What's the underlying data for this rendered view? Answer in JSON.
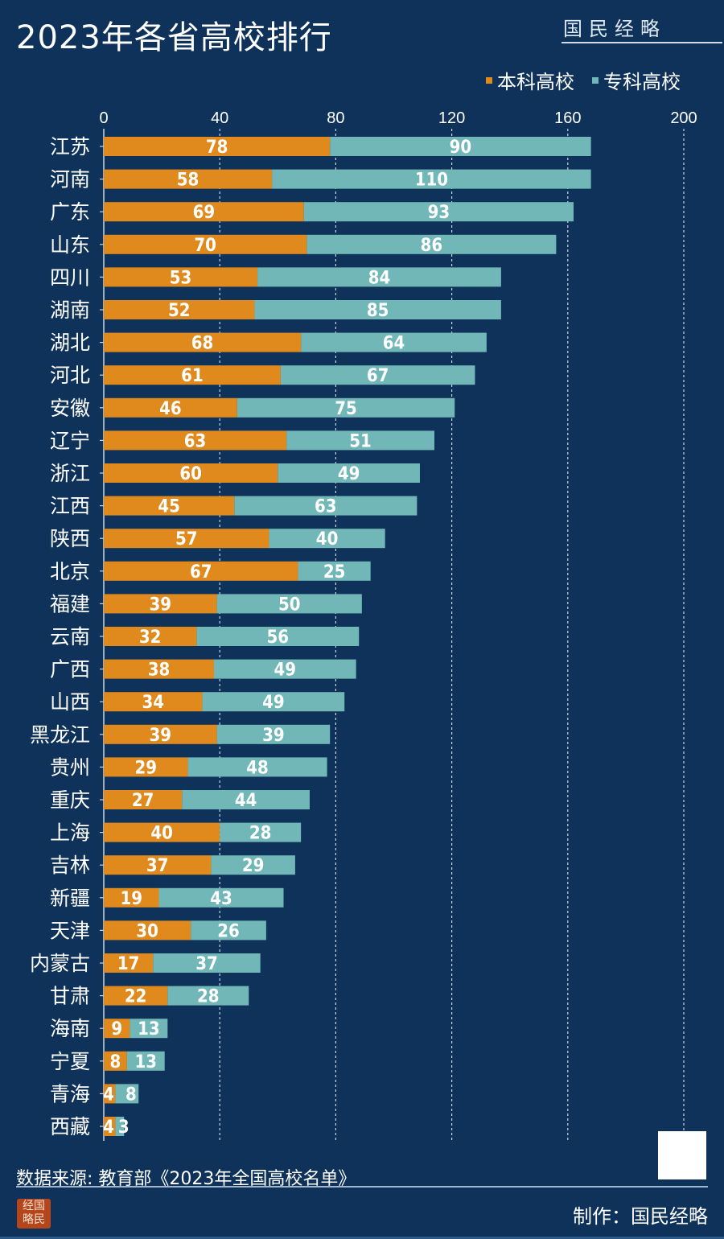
{
  "header": {
    "title": "2023年各省高校排行",
    "brand": "国民经略"
  },
  "colors": {
    "background": "#0e3259",
    "undergrad": "#e08a1e",
    "junior": "#72b7b7"
  },
  "chart_data": {
    "type": "bar",
    "orientation": "horizontal-stacked",
    "title": "2023年各省高校排行",
    "xlim": [
      0,
      200
    ],
    "xticks": [
      0,
      40,
      80,
      120,
      160,
      200
    ],
    "grid": true,
    "legend": "top-right",
    "categories": [
      "江苏",
      "河南",
      "广东",
      "山东",
      "四川",
      "湖南",
      "湖北",
      "河北",
      "安徽",
      "辽宁",
      "浙江",
      "江西",
      "陕西",
      "北京",
      "福建",
      "云南",
      "广西",
      "山西",
      "黑龙江",
      "贵州",
      "重庆",
      "上海",
      "吉林",
      "新疆",
      "天津",
      "内蒙古",
      "甘肃",
      "海南",
      "宁夏",
      "青海",
      "西藏"
    ],
    "series": [
      {
        "name": "本科高校",
        "values": [
          78,
          58,
          69,
          70,
          53,
          52,
          68,
          61,
          46,
          63,
          60,
          45,
          57,
          67,
          39,
          32,
          38,
          34,
          39,
          29,
          27,
          40,
          37,
          19,
          30,
          17,
          22,
          9,
          8,
          4,
          4
        ]
      },
      {
        "name": "专科高校",
        "values": [
          90,
          110,
          93,
          86,
          84,
          85,
          64,
          67,
          75,
          51,
          49,
          63,
          40,
          25,
          50,
          56,
          49,
          49,
          39,
          48,
          44,
          28,
          29,
          43,
          26,
          37,
          28,
          13,
          13,
          8,
          3
        ]
      }
    ]
  },
  "footer": {
    "source": "数据来源: 教育部《2023年全国高校名单》",
    "maker": "制作：国民经略",
    "seal": [
      "经国",
      "略民"
    ]
  }
}
